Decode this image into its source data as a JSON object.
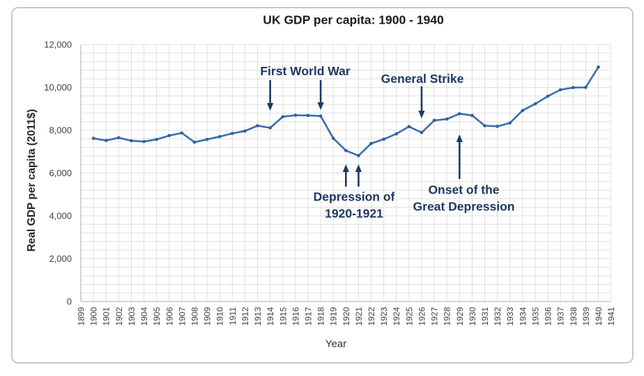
{
  "chart_data": {
    "type": "line",
    "title": "UK GDP per capita: 1900 - 1940",
    "xlabel": "Year",
    "ylabel": "Real GDP per capita (2011$)",
    "x_tick_labels": [
      "1899",
      "1900",
      "1901",
      "1902",
      "1903",
      "1904",
      "1905",
      "1906",
      "1907",
      "1908",
      "1909",
      "1910",
      "1911",
      "1912",
      "1913",
      "1914",
      "1915",
      "1916",
      "1917",
      "1918",
      "1919",
      "1920",
      "1921",
      "1922",
      "1923",
      "1924",
      "1925",
      "1926",
      "1927",
      "1928",
      "1929",
      "1930",
      "1931",
      "1932",
      "1933",
      "1934",
      "1935",
      "1936",
      "1937",
      "1938",
      "1939",
      "1940",
      "1941"
    ],
    "y_tick_labels": [
      "0",
      "2,000",
      "4,000",
      "6,000",
      "8,000",
      "10,000",
      "12,000"
    ],
    "y_major_ticks": [
      0,
      2000,
      4000,
      6000,
      8000,
      10000,
      12000
    ],
    "xlim": [
      1899,
      1941
    ],
    "ylim": [
      0,
      12000
    ],
    "grid": {
      "x_interval": 1,
      "y_minor_interval": 400,
      "visible": true
    },
    "legend": "none",
    "series": [
      {
        "name": "Real GDP per capita (2011$)",
        "x": [
          1900,
          1901,
          1902,
          1903,
          1904,
          1905,
          1906,
          1907,
          1908,
          1909,
          1910,
          1911,
          1912,
          1913,
          1914,
          1915,
          1916,
          1917,
          1918,
          1919,
          1920,
          1921,
          1922,
          1923,
          1924,
          1925,
          1926,
          1927,
          1928,
          1929,
          1930,
          1931,
          1932,
          1933,
          1934,
          1935,
          1936,
          1937,
          1938,
          1939,
          1940
        ],
        "values": [
          7620,
          7520,
          7650,
          7510,
          7470,
          7570,
          7750,
          7870,
          7440,
          7570,
          7700,
          7850,
          7960,
          8210,
          8110,
          8630,
          8700,
          8690,
          8660,
          7620,
          7050,
          6810,
          7380,
          7580,
          7830,
          8170,
          7890,
          8460,
          8520,
          8770,
          8690,
          8210,
          8180,
          8340,
          8920,
          9230,
          9590,
          9890,
          9990,
          10000,
          10950
        ]
      }
    ],
    "annotations": [
      {
        "id": "first-world-war",
        "text": "First World War",
        "arrow_years": [
          1914,
          1918
        ],
        "arrow_direction": "down"
      },
      {
        "id": "general-strike",
        "text": "General Strike",
        "arrow_years": [
          1926
        ],
        "arrow_direction": "down"
      },
      {
        "id": "depression-1920-1921",
        "text": "Depression of\n1920-1921",
        "arrow_years": [
          1920,
          1921
        ],
        "arrow_direction": "up"
      },
      {
        "id": "onset-great-depression",
        "text": "Onset of the\nGreat Depression",
        "arrow_years": [
          1929
        ],
        "arrow_direction": "up"
      }
    ],
    "colors": {
      "line": "#3a6dad",
      "marker": "#2f5f9e",
      "annotation": "#1f3864",
      "gridline": "#dfdfdf",
      "axis_line": "#bdbdbd",
      "tick_label": "#3f3f3f",
      "title": "#1c1c1c",
      "card_border": "#c9c9c9",
      "background": "#ffffff"
    }
  }
}
